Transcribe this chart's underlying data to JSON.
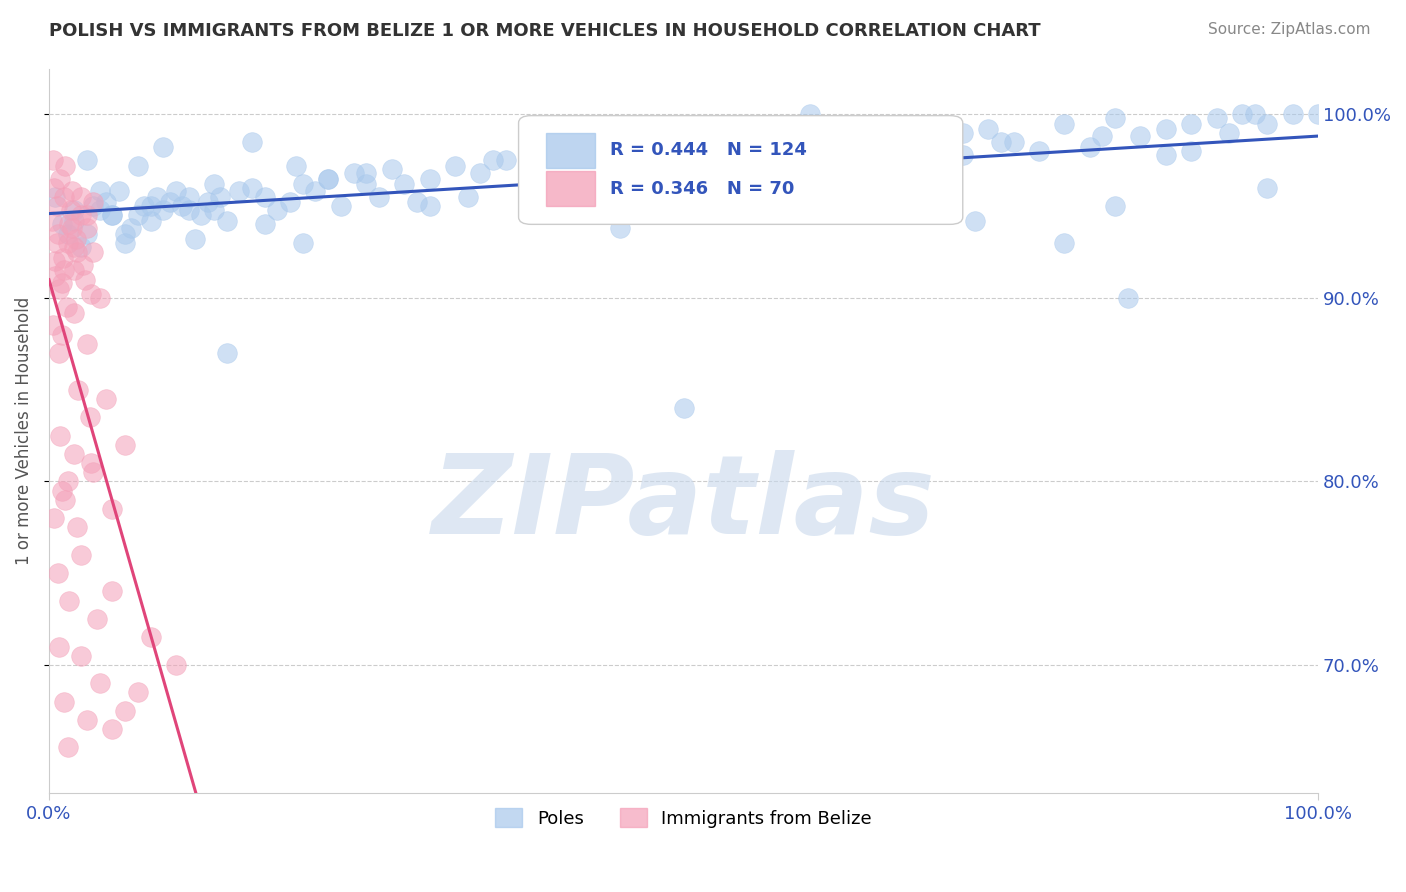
{
  "title": "POLISH VS IMMIGRANTS FROM BELIZE 1 OR MORE VEHICLES IN HOUSEHOLD CORRELATION CHART",
  "source": "Source: ZipAtlas.com",
  "ylabel": "1 or more Vehicles in Household",
  "xlim": [
    0.0,
    100.0
  ],
  "ylim": [
    63.0,
    102.5
  ],
  "xticks": [
    0.0,
    100.0
  ],
  "xticklabels": [
    "0.0%",
    "100.0%"
  ],
  "ytick_positions": [
    70.0,
    80.0,
    90.0,
    100.0
  ],
  "ytick_labels": [
    "70.0%",
    "80.0%",
    "90.0%",
    "100.0%"
  ],
  "blue_R": 0.444,
  "blue_N": 124,
  "pink_R": 0.346,
  "pink_N": 70,
  "blue_color": "#A8C8EC",
  "pink_color": "#F4A0B8",
  "trend_blue": "#3355BB",
  "trend_pink": "#E0457A",
  "watermark": "ZIPatlas",
  "watermark_color": "#C8D8EC",
  "legend_blue_label": "Poles",
  "legend_pink_label": "Immigrants from Belize",
  "blue_scatter_x": [
    0.5,
    1.0,
    1.5,
    2.0,
    2.5,
    3.0,
    3.5,
    4.0,
    4.5,
    5.0,
    5.5,
    6.0,
    6.5,
    7.0,
    7.5,
    8.0,
    8.5,
    9.0,
    9.5,
    10.0,
    10.5,
    11.0,
    11.5,
    12.0,
    12.5,
    13.0,
    13.5,
    14.0,
    15.0,
    16.0,
    17.0,
    18.0,
    19.0,
    20.0,
    21.0,
    22.0,
    23.0,
    24.0,
    25.0,
    26.0,
    27.0,
    28.0,
    30.0,
    32.0,
    34.0,
    36.0,
    38.0,
    40.0,
    42.0,
    44.0,
    46.0,
    48.0,
    50.0,
    52.0,
    54.0,
    56.0,
    58.0,
    60.0,
    62.0,
    64.0,
    66.0,
    68.0,
    70.0,
    72.0,
    74.0,
    76.0,
    78.0,
    80.0,
    82.0,
    84.0,
    86.0,
    88.0,
    90.0,
    92.0,
    94.0,
    96.0,
    98.0,
    100.0,
    6.0,
    8.0,
    14.0,
    22.0,
    35.0,
    50.0,
    55.0,
    65.0,
    70.0,
    80.0,
    85.0,
    90.0,
    95.0,
    4.0,
    7.0,
    11.0,
    17.0,
    25.0,
    33.0,
    45.0,
    58.0,
    67.0,
    75.0,
    88.0,
    5.0,
    9.0,
    13.0,
    20.0,
    30.0,
    42.0,
    53.0,
    63.0,
    73.0,
    83.0,
    93.0,
    3.0,
    16.0,
    29.0,
    38.0,
    48.0,
    60.0,
    72.0,
    84.0,
    96.0,
    2.0,
    19.5
  ],
  "blue_scatter_y": [
    95.5,
    94.0,
    93.5,
    94.2,
    92.8,
    93.5,
    95.0,
    94.8,
    95.2,
    94.5,
    95.8,
    93.0,
    93.8,
    94.5,
    95.0,
    94.2,
    95.5,
    94.8,
    95.2,
    95.8,
    95.0,
    94.8,
    93.2,
    94.5,
    95.2,
    94.8,
    95.5,
    94.2,
    95.8,
    96.0,
    95.5,
    94.8,
    95.2,
    96.2,
    95.8,
    96.5,
    95.0,
    96.8,
    96.2,
    95.5,
    97.0,
    96.2,
    96.5,
    97.2,
    96.8,
    97.5,
    96.0,
    97.8,
    97.2,
    98.0,
    97.5,
    96.8,
    97.2,
    95.2,
    98.5,
    97.8,
    97.2,
    98.2,
    97.0,
    98.8,
    97.5,
    98.2,
    99.0,
    97.8,
    99.2,
    98.5,
    98.0,
    99.5,
    98.2,
    99.8,
    98.8,
    99.2,
    99.5,
    99.8,
    100.0,
    99.5,
    100.0,
    100.0,
    93.5,
    95.0,
    87.0,
    96.5,
    97.5,
    84.0,
    96.0,
    97.0,
    98.5,
    93.0,
    90.0,
    98.0,
    100.0,
    95.8,
    97.2,
    95.5,
    94.0,
    96.8,
    95.5,
    93.8,
    96.0,
    97.5,
    98.5,
    97.8,
    94.5,
    98.2,
    96.2,
    93.0,
    95.0,
    97.0,
    98.0,
    96.5,
    94.2,
    98.8,
    99.0,
    97.5,
    98.5,
    95.2,
    95.5,
    99.2,
    100.0,
    99.0,
    95.0,
    96.0,
    94.8,
    97.2
  ],
  "pink_scatter_x": [
    0.3,
    0.5,
    0.8,
    1.0,
    1.2,
    1.5,
    1.8,
    2.0,
    2.5,
    3.0,
    0.2,
    0.6,
    0.9,
    1.3,
    1.7,
    2.2,
    2.8,
    3.5,
    0.4,
    0.7,
    1.1,
    1.6,
    2.1,
    2.7,
    3.3,
    0.3,
    0.8,
    1.4,
    2.0,
    3.0,
    0.5,
    1.0,
    1.8,
    2.5,
    3.5,
    0.6,
    1.2,
    2.0,
    3.0,
    4.0,
    0.4,
    0.9,
    1.5,
    2.3,
    3.2,
    0.7,
    1.3,
    2.2,
    3.3,
    4.5,
    0.8,
    1.6,
    2.5,
    3.8,
    5.0,
    1.0,
    2.0,
    3.5,
    5.0,
    6.0,
    1.2,
    2.5,
    4.0,
    6.0,
    8.0,
    1.5,
    3.0,
    5.0,
    7.0,
    10.0
  ],
  "pink_scatter_y": [
    97.5,
    92.0,
    90.5,
    88.0,
    95.5,
    93.0,
    95.8,
    91.5,
    94.5,
    93.8,
    94.2,
    95.0,
    96.5,
    97.2,
    94.8,
    92.5,
    91.0,
    95.2,
    96.0,
    93.5,
    92.2,
    94.0,
    93.2,
    91.8,
    90.2,
    88.5,
    87.0,
    89.5,
    92.8,
    94.5,
    91.2,
    90.8,
    93.8,
    95.5,
    92.5,
    93.0,
    91.5,
    89.2,
    87.5,
    90.0,
    78.0,
    82.5,
    80.0,
    85.0,
    83.5,
    75.0,
    79.0,
    77.5,
    81.0,
    84.5,
    71.0,
    73.5,
    76.0,
    72.5,
    74.0,
    79.5,
    81.5,
    80.5,
    78.5,
    82.0,
    68.0,
    70.5,
    69.0,
    67.5,
    71.5,
    65.5,
    67.0,
    66.5,
    68.5,
    70.0
  ]
}
